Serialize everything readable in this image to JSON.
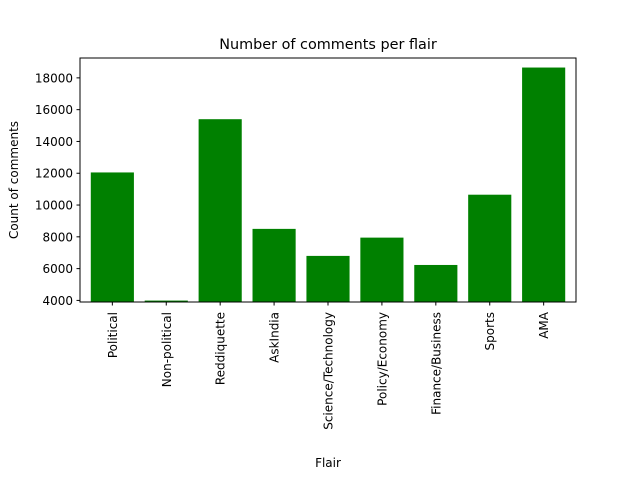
{
  "chart_data": {
    "type": "bar",
    "title": "Number of comments per flair",
    "xlabel": "Flair",
    "ylabel": "Count of comments",
    "categories": [
      "Political",
      "Non-political",
      "Reddiquette",
      "AskIndia",
      "Science/Technology",
      "Policy/Economy",
      "Finance/Business",
      "Sports",
      "AMA"
    ],
    "values": [
      12050,
      3990,
      15400,
      8500,
      6800,
      7950,
      6230,
      10650,
      18650
    ],
    "ylim": [
      3900,
      19250
    ],
    "yticks": [
      4000,
      6000,
      8000,
      10000,
      12000,
      14000,
      16000,
      18000
    ],
    "ytick_labels": [
      "4000",
      "6000",
      "8000",
      "10000",
      "12000",
      "14000",
      "16000",
      "18000"
    ],
    "bar_color": "#008000",
    "grid": false,
    "legend": "none"
  }
}
